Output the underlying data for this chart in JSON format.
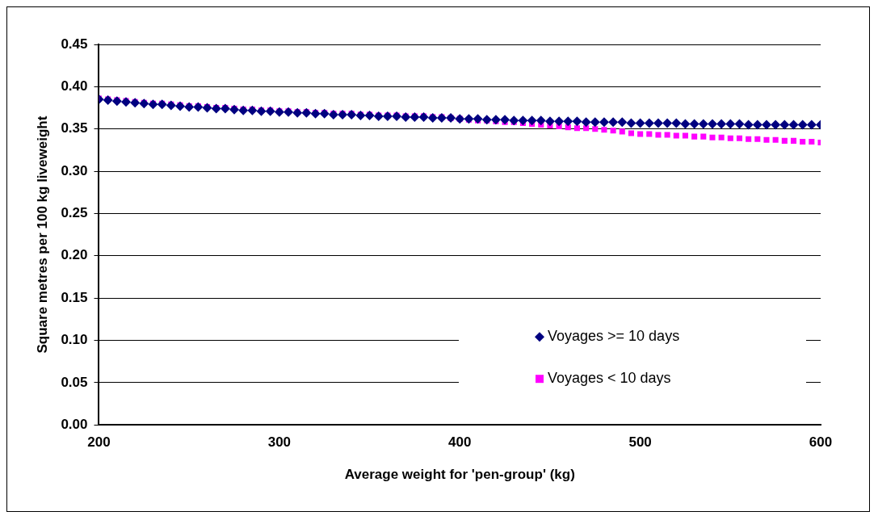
{
  "chart_data": {
    "type": "scatter",
    "xlabel": "Average weight for 'pen-group' (kg)",
    "ylabel": "Square metres per 100 kg liveweight",
    "x": [
      200,
      205,
      210,
      215,
      220,
      225,
      230,
      235,
      240,
      245,
      250,
      255,
      260,
      265,
      270,
      275,
      280,
      285,
      290,
      295,
      300,
      305,
      310,
      315,
      320,
      325,
      330,
      335,
      340,
      345,
      350,
      355,
      360,
      365,
      370,
      375,
      380,
      385,
      390,
      395,
      400,
      405,
      410,
      415,
      420,
      425,
      430,
      435,
      440,
      445,
      450,
      455,
      460,
      465,
      470,
      475,
      480,
      485,
      490,
      495,
      500,
      505,
      510,
      515,
      520,
      525,
      530,
      535,
      540,
      545,
      550,
      555,
      560,
      565,
      570,
      575,
      580,
      585,
      590,
      595,
      600
    ],
    "series": [
      {
        "name": "Voyages >= 10 days",
        "color": "#000080",
        "marker": "diamond",
        "values": [
          0.385,
          0.384,
          0.383,
          0.382,
          0.381,
          0.38,
          0.379,
          0.379,
          0.378,
          0.377,
          0.376,
          0.376,
          0.375,
          0.374,
          0.374,
          0.373,
          0.372,
          0.372,
          0.371,
          0.371,
          0.37,
          0.37,
          0.369,
          0.369,
          0.368,
          0.368,
          0.367,
          0.367,
          0.367,
          0.366,
          0.366,
          0.365,
          0.365,
          0.365,
          0.364,
          0.364,
          0.364,
          0.363,
          0.363,
          0.363,
          0.362,
          0.362,
          0.362,
          0.361,
          0.361,
          0.361,
          0.36,
          0.36,
          0.36,
          0.36,
          0.359,
          0.359,
          0.359,
          0.359,
          0.358,
          0.358,
          0.358,
          0.358,
          0.358,
          0.357,
          0.357,
          0.357,
          0.357,
          0.357,
          0.357,
          0.356,
          0.356,
          0.356,
          0.356,
          0.356,
          0.356,
          0.356,
          0.355,
          0.355,
          0.355,
          0.355,
          0.355,
          0.355,
          0.355,
          0.355,
          0.355
        ]
      },
      {
        "name": "Voyages < 10 days",
        "color": "#ff00ff",
        "marker": "square",
        "values": [
          0.386,
          0.385,
          0.384,
          0.383,
          0.382,
          0.381,
          0.38,
          0.38,
          0.379,
          0.378,
          0.377,
          0.377,
          0.376,
          0.375,
          0.375,
          0.374,
          0.373,
          0.373,
          0.372,
          0.372,
          0.371,
          0.371,
          0.37,
          0.37,
          0.369,
          0.369,
          0.368,
          0.368,
          0.368,
          0.367,
          0.367,
          0.366,
          0.366,
          0.366,
          0.365,
          0.365,
          0.365,
          0.364,
          0.364,
          0.363,
          0.362,
          0.361,
          0.36,
          0.36,
          0.359,
          0.358,
          0.358,
          0.357,
          0.356,
          0.355,
          0.354,
          0.353,
          0.352,
          0.351,
          0.351,
          0.35,
          0.349,
          0.348,
          0.347,
          0.345,
          0.344,
          0.344,
          0.343,
          0.343,
          0.342,
          0.342,
          0.341,
          0.341,
          0.34,
          0.34,
          0.339,
          0.339,
          0.338,
          0.338,
          0.337,
          0.337,
          0.336,
          0.336,
          0.335,
          0.335,
          0.334
        ]
      }
    ],
    "xlim": [
      200,
      600
    ],
    "xticks": [
      200,
      300,
      400,
      500,
      600
    ],
    "ylim": [
      0,
      0.45
    ],
    "yticks": [
      {
        "value": 0,
        "label": "0.00"
      },
      {
        "value": 0.05,
        "label": "0.05"
      },
      {
        "value": 0.1,
        "label": "0.10"
      },
      {
        "value": 0.15,
        "label": "0.15"
      },
      {
        "value": 0.2,
        "label": "0.20"
      },
      {
        "value": 0.25,
        "label": "0.25"
      },
      {
        "value": 0.3,
        "label": "0.30"
      },
      {
        "value": 0.35,
        "label": "0.35"
      },
      {
        "value": 0.4,
        "label": "0.40"
      },
      {
        "value": 0.45,
        "label": "0.45"
      }
    ],
    "grid": "y",
    "legend": "bottom right"
  }
}
